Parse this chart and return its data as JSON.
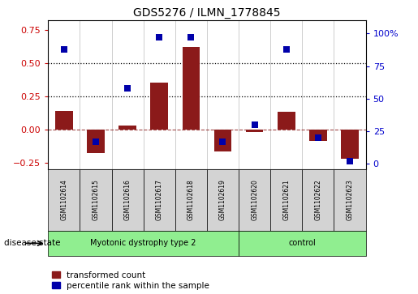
{
  "title": "GDS5276 / ILMN_1778845",
  "samples": [
    "GSM1102614",
    "GSM1102615",
    "GSM1102616",
    "GSM1102617",
    "GSM1102618",
    "GSM1102619",
    "GSM1102620",
    "GSM1102621",
    "GSM1102622",
    "GSM1102623"
  ],
  "red_values": [
    0.14,
    -0.18,
    0.03,
    0.35,
    0.62,
    -0.17,
    -0.02,
    0.13,
    -0.09,
    -0.22
  ],
  "blue_values": [
    88,
    17,
    58,
    97,
    97,
    17,
    30,
    88,
    20,
    2
  ],
  "groups": [
    {
      "label": "Myotonic dystrophy type 2",
      "start": 0,
      "end": 6
    },
    {
      "label": "control",
      "start": 6,
      "end": 10
    }
  ],
  "disease_state_label": "disease state",
  "legend_red": "transformed count",
  "legend_blue": "percentile rank within the sample",
  "ylim_left": [
    -0.3,
    0.82
  ],
  "ylim_right": [
    -4,
    110
  ],
  "yticks_left": [
    -0.25,
    0.0,
    0.25,
    0.5,
    0.75
  ],
  "yticks_right": [
    0,
    25,
    50,
    75,
    100
  ],
  "hlines": [
    0.25,
    0.5
  ],
  "red_color": "#8B1A1A",
  "blue_color": "#0000AA",
  "bar_width": 0.55,
  "marker_size": 6,
  "background_color": "#ffffff",
  "tick_label_color_left": "#cc0000",
  "tick_label_color_right": "#0000cc",
  "cell_bg": "#d3d3d3",
  "group_color": "#90EE90",
  "n_samples": 10,
  "disease_group_boundary": 6
}
